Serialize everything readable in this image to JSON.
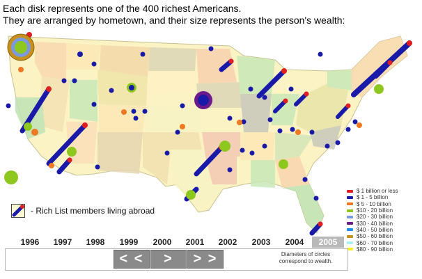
{
  "caption": {
    "line1": "Each disk represents one of the 400 richest Americans.",
    "line2": "They are arranged by hometown, and their size represents the person's wealth:"
  },
  "abroad_label": "- Rich List members living abroad",
  "legend": [
    {
      "label": "$  1 billion or less",
      "color": "#e02020"
    },
    {
      "label": "$  1 -    5 billion",
      "color": "#1a1aa8"
    },
    {
      "label": "$  5 - 10 billion",
      "color": "#f07820"
    },
    {
      "label": "$10 - 20 billion",
      "color": "#8ec81e"
    },
    {
      "label": "$20 - 30 billion",
      "color": "#7a9ae0"
    },
    {
      "label": "$30 - 40 billion",
      "color": "#6b1a8a"
    },
    {
      "label": "$40 - 50 billion",
      "color": "#1e90e8"
    },
    {
      "label": "$50 - 60 billion",
      "color": "#c89020"
    },
    {
      "label": "$60 - 70 billion",
      "color": "#aaf0f0"
    },
    {
      "label": "$80 - 90 billion",
      "color": "#f8f020"
    }
  ],
  "years": [
    "1996",
    "1997",
    "1998",
    "1999",
    "2000",
    "2001",
    "2002",
    "2003",
    "2004",
    "2005"
  ],
  "selected_year": "2005",
  "nav": {
    "back": "< <",
    "next": ">",
    "forward": "> >"
  },
  "note": "Diameters of circles correspond to wealth."
}
